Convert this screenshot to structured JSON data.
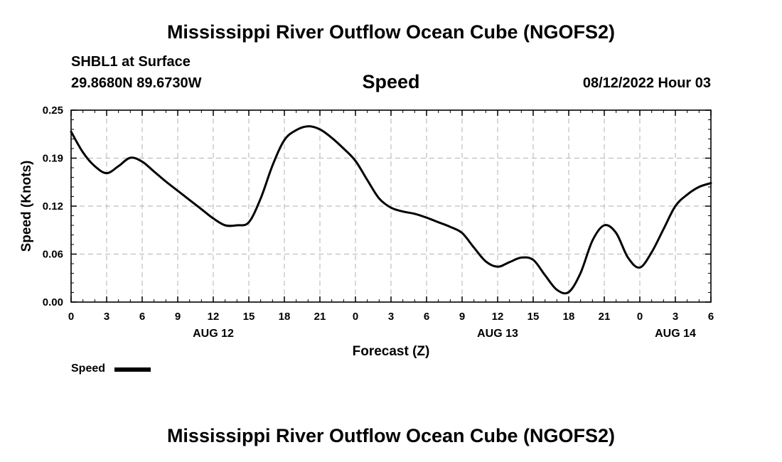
{
  "header": {
    "main_title": "Mississippi River Outflow Ocean Cube (NGOFS2)",
    "station": "SHBL1 at Surface",
    "coords": "29.8680N  89.6730W",
    "chart_title": "Speed",
    "timestamp": "08/12/2022 Hour 03"
  },
  "legend": {
    "label": "Speed"
  },
  "footer": {
    "title": "Mississippi River Outflow Ocean Cube (NGOFS2)"
  },
  "colors": {
    "line": "#000000",
    "grid": "#bfbfbf"
  },
  "chart_data": {
    "type": "line",
    "title": "Speed",
    "xlabel": "Forecast (Z)",
    "ylabel": "Speed (Knots)",
    "xlim": [
      0,
      54
    ],
    "ylim": [
      0,
      0.25
    ],
    "grid": true,
    "legend_position": "bottom-left",
    "xticks": [
      {
        "pos": 0,
        "label": "0"
      },
      {
        "pos": 3,
        "label": "3"
      },
      {
        "pos": 6,
        "label": "6"
      },
      {
        "pos": 9,
        "label": "9"
      },
      {
        "pos": 12,
        "label": "12"
      },
      {
        "pos": 15,
        "label": "15"
      },
      {
        "pos": 18,
        "label": "18"
      },
      {
        "pos": 21,
        "label": "21"
      },
      {
        "pos": 24,
        "label": "0"
      },
      {
        "pos": 27,
        "label": "3"
      },
      {
        "pos": 30,
        "label": "6"
      },
      {
        "pos": 33,
        "label": "9"
      },
      {
        "pos": 36,
        "label": "12"
      },
      {
        "pos": 39,
        "label": "15"
      },
      {
        "pos": 42,
        "label": "18"
      },
      {
        "pos": 45,
        "label": "21"
      },
      {
        "pos": 48,
        "label": "0"
      },
      {
        "pos": 51,
        "label": "3"
      },
      {
        "pos": 54,
        "label": "6"
      }
    ],
    "yticks": [
      {
        "value": 0.0,
        "label": "0.00"
      },
      {
        "value": 0.0625,
        "label": "0.06"
      },
      {
        "value": 0.125,
        "label": "0.12"
      },
      {
        "value": 0.1875,
        "label": "0.19"
      },
      {
        "value": 0.25,
        "label": "0.25"
      }
    ],
    "date_labels": [
      {
        "pos": 12,
        "label": "AUG 12"
      },
      {
        "pos": 36,
        "label": "AUG 13"
      },
      {
        "pos": 51,
        "label": "AUG 14"
      }
    ],
    "series": [
      {
        "name": "Speed",
        "x": [
          0,
          1,
          2,
          3,
          4,
          5,
          6,
          7,
          8,
          9,
          10,
          11,
          12,
          13,
          14,
          15,
          16,
          17,
          18,
          19,
          20,
          21,
          22,
          23,
          24,
          25,
          26,
          27,
          28,
          29,
          30,
          31,
          32,
          33,
          34,
          35,
          36,
          37,
          38,
          39,
          40,
          41,
          42,
          43,
          44,
          45,
          46,
          47,
          48,
          49,
          50,
          51,
          52,
          53,
          54
        ],
        "values": [
          0.222,
          0.195,
          0.177,
          0.168,
          0.177,
          0.188,
          0.183,
          0.17,
          0.157,
          0.145,
          0.133,
          0.121,
          0.109,
          0.1,
          0.1,
          0.104,
          0.135,
          0.178,
          0.211,
          0.224,
          0.229,
          0.225,
          0.214,
          0.2,
          0.184,
          0.159,
          0.135,
          0.123,
          0.118,
          0.115,
          0.11,
          0.104,
          0.098,
          0.09,
          0.071,
          0.053,
          0.046,
          0.052,
          0.058,
          0.055,
          0.035,
          0.016,
          0.013,
          0.038,
          0.08,
          0.1,
          0.09,
          0.058,
          0.045,
          0.065,
          0.095,
          0.125,
          0.14,
          0.15,
          0.155
        ]
      }
    ]
  }
}
